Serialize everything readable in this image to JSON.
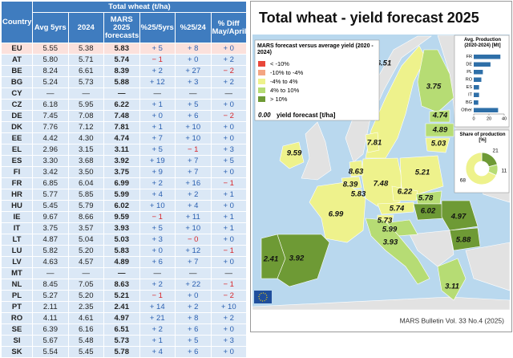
{
  "table": {
    "header": {
      "country": "Country",
      "group": "Total wheat (t/ha)",
      "columns": [
        "Avg 5yrs",
        "2024",
        "MARS 2025 forecasts",
        "%25/5yrs",
        "%25/24",
        "% Diff May/April"
      ]
    },
    "rows": [
      [
        "EU",
        "5.55",
        "5.38",
        "5.83",
        "+ 5",
        "+ 8",
        "+ 0"
      ],
      [
        "AT",
        "5.80",
        "5.71",
        "5.74",
        "− 1",
        "+ 0",
        "+ 2"
      ],
      [
        "BE",
        "8.24",
        "6.61",
        "8.39",
        "+ 2",
        "+ 27",
        "− 2"
      ],
      [
        "BG",
        "5.24",
        "5.73",
        "5.88",
        "+ 12",
        "+ 3",
        "+ 2"
      ],
      [
        "CY",
        "—",
        "—",
        "—",
        "—",
        "—",
        "—"
      ],
      [
        "CZ",
        "6.18",
        "5.95",
        "6.22",
        "+ 1",
        "+ 5",
        "+ 0"
      ],
      [
        "DE",
        "7.45",
        "7.08",
        "7.48",
        "+ 0",
        "+ 6",
        "− 2"
      ],
      [
        "DK",
        "7.76",
        "7.12",
        "7.81",
        "+ 1",
        "+ 10",
        "+ 0"
      ],
      [
        "EE",
        "4.42",
        "4.30",
        "4.74",
        "+ 7",
        "+ 10",
        "+ 0"
      ],
      [
        "EL",
        "2.96",
        "3.15",
        "3.11",
        "+ 5",
        "− 1",
        "+ 3"
      ],
      [
        "ES",
        "3.30",
        "3.68",
        "3.92",
        "+ 19",
        "+ 7",
        "+ 5"
      ],
      [
        "FI",
        "3.42",
        "3.50",
        "3.75",
        "+ 9",
        "+ 7",
        "+ 0"
      ],
      [
        "FR",
        "6.85",
        "6.04",
        "6.99",
        "+ 2",
        "+ 16",
        "− 1"
      ],
      [
        "HR",
        "5.77",
        "5.85",
        "5.99",
        "+ 4",
        "+ 2",
        "+ 1"
      ],
      [
        "HU",
        "5.45",
        "5.79",
        "6.02",
        "+ 10",
        "+ 4",
        "+ 0"
      ],
      [
        "IE",
        "9.67",
        "8.66",
        "9.59",
        "− 1",
        "+ 11",
        "+ 1"
      ],
      [
        "IT",
        "3.75",
        "3.57",
        "3.93",
        "+ 5",
        "+ 10",
        "+ 1"
      ],
      [
        "LT",
        "4.87",
        "5.04",
        "5.03",
        "+ 3",
        "− 0",
        "+ 0"
      ],
      [
        "LU",
        "5.82",
        "5.20",
        "5.83",
        "+ 0",
        "+ 12",
        "− 1"
      ],
      [
        "LV",
        "4.63",
        "4.57",
        "4.89",
        "+ 6",
        "+ 7",
        "+ 0"
      ],
      [
        "MT",
        "—",
        "—",
        "—",
        "—",
        "—",
        "—"
      ],
      [
        "NL",
        "8.45",
        "7.05",
        "8.63",
        "+ 2",
        "+ 22",
        "− 1"
      ],
      [
        "PL",
        "5.27",
        "5.20",
        "5.21",
        "− 1",
        "+ 0",
        "− 2"
      ],
      [
        "PT",
        "2.11",
        "2.35",
        "2.41",
        "+ 14",
        "+ 2",
        "+ 10"
      ],
      [
        "RO",
        "4.11",
        "4.61",
        "4.97",
        "+ 21",
        "+ 8",
        "+ 2"
      ],
      [
        "SE",
        "6.39",
        "6.16",
        "6.51",
        "+ 2",
        "+ 6",
        "+ 0"
      ],
      [
        "SI",
        "5.67",
        "5.48",
        "5.73",
        "+ 1",
        "+ 5",
        "+ 3"
      ],
      [
        "SK",
        "5.54",
        "5.45",
        "5.78",
        "+ 4",
        "+ 6",
        "+ 0"
      ]
    ]
  },
  "map": {
    "title": "Total wheat - yield forecast 2025",
    "legend": {
      "title": "MARS forecast versus average yield (2020 - 2024)",
      "items": [
        {
          "label": "< -10%",
          "color": "#e8473a"
        },
        {
          "label": "-10% to -4%",
          "color": "#f4a582"
        },
        {
          "label": "-4% to 4%",
          "color": "#eef28c"
        },
        {
          "label": "4% to 10%",
          "color": "#b6dc74"
        },
        {
          "label": "> 10%",
          "color": "#6e9a35"
        }
      ],
      "value_sample": "0.00",
      "value_note": "yield forecast [t/ha]"
    },
    "regions": [
      {
        "label": "6.51",
        "color": "#eef28c"
      },
      {
        "label": "3.75",
        "color": "#b6dc74"
      },
      {
        "label": "4.74",
        "color": "#b6dc74"
      },
      {
        "label": "4.89",
        "color": "#b6dc74"
      },
      {
        "label": "5.03",
        "color": "#eef28c"
      },
      {
        "label": "7.81",
        "color": "#eef28c"
      },
      {
        "label": "9.59",
        "color": "#eef28c"
      },
      {
        "label": "8.63",
        "color": "#eef28c"
      },
      {
        "label": "8.39",
        "color": "#eef28c"
      },
      {
        "label": "5.83",
        "color": "#eef28c"
      },
      {
        "label": "7.48",
        "color": "#eef28c"
      },
      {
        "label": "5.21",
        "color": "#eef28c"
      },
      {
        "label": "6.22",
        "color": "#eef28c"
      },
      {
        "label": "5.78",
        "color": "#b6dc74"
      },
      {
        "label": "6.99",
        "color": "#eef28c"
      },
      {
        "label": "5.74",
        "color": "#eef28c"
      },
      {
        "label": "6.02",
        "color": "#6e9a35"
      },
      {
        "label": "4.97",
        "color": "#6e9a35"
      },
      {
        "label": "5.73",
        "color": "#eef28c"
      },
      {
        "label": "5.99",
        "color": "#b6dc74"
      },
      {
        "label": "5.88",
        "color": "#6e9a35"
      },
      {
        "label": "3.93",
        "color": "#b6dc74"
      },
      {
        "label": "2.41",
        "color": "#6e9a35"
      },
      {
        "label": "3.92",
        "color": "#6e9a35"
      },
      {
        "label": "3.11",
        "color": "#b6dc74"
      }
    ],
    "footer": "MARS Bulletin Vol. 33 No.4 (2025)"
  },
  "production_chart": {
    "type": "bar",
    "title": "Avg. Production (2020-2024) [Mt]",
    "categories": [
      "FR",
      "DE",
      "PL",
      "RO",
      "ES",
      "IT",
      "BG",
      "Other"
    ],
    "values": [
      35,
      22,
      12,
      10,
      7,
      7,
      6,
      32
    ],
    "color": "#2e6fa8",
    "xlim": [
      0,
      40
    ],
    "xticks": [
      0,
      20,
      40
    ]
  },
  "share_chart": {
    "type": "pie",
    "title": "Share of production [%]",
    "values": [
      21,
      11,
      68
    ],
    "colors": [
      "#6e9a35",
      "#b6dc74",
      "#eef28c"
    ]
  }
}
